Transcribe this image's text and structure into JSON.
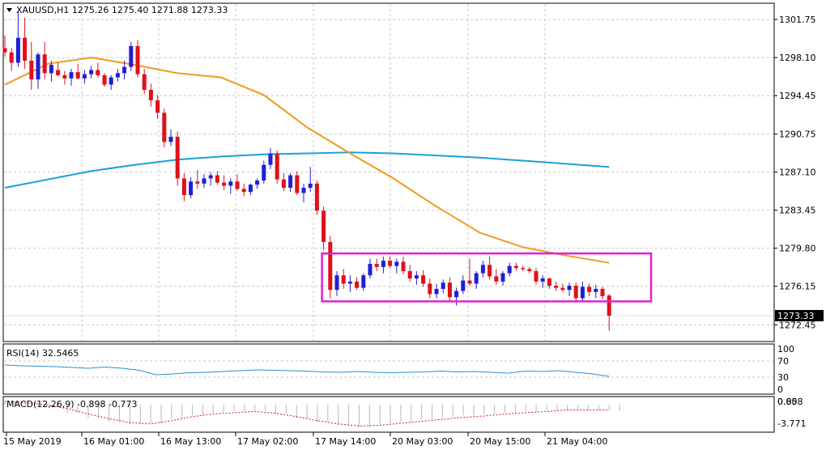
{
  "header": {
    "menu_icon": "triangle-down-icon",
    "text": "XAUUSD,H1  1275.26 1275.40 1271.88 1273.33"
  },
  "price_axis": {
    "ticks": [
      "1301.75",
      "1298.10",
      "1294.45",
      "1290.75",
      "1287.10",
      "1283.45",
      "1279.80",
      "1276.15",
      "1272.45"
    ],
    "current_price": "1273.33"
  },
  "time_axis": {
    "labels": [
      "15 May 2019",
      "16 May 01:00",
      "16 May 13:00",
      "17 May 02:00",
      "17 May 14:00",
      "20 May 03:00",
      "20 May 15:00",
      "21 May 04:00"
    ]
  },
  "rsi": {
    "label": "RSI(14) 32.5465",
    "ticks": [
      "100",
      "70",
      "30",
      "0"
    ]
  },
  "macd": {
    "label": "MACD(12,26,9) -0.898 -0.773",
    "ticks": [
      "0.858",
      "0.00",
      "-3.771"
    ]
  },
  "colors": {
    "bull": "#1f1fd6",
    "bear": "#e0101a",
    "ma_fast": "#f29a1e",
    "ma_slow": "#1aa0d8",
    "box": "#e01fd8",
    "rsi_line": "#2a8fd0",
    "macd_hist": "#b8b8b8",
    "macd_signal": "#d21a1a",
    "grid": "#c8c8c8"
  },
  "chart_data": {
    "type": "candlestick",
    "symbol": "XAUUSD",
    "timeframe": "H1",
    "ylim": [
      1271.0,
      1303.0
    ],
    "candles": [
      [
        1299.0,
        1300.2,
        1298.2,
        1298.6
      ],
      [
        1298.6,
        1299.0,
        1296.8,
        1297.6
      ],
      [
        1297.6,
        1302.5,
        1297.2,
        1300.0
      ],
      [
        1300.0,
        1301.9,
        1297.0,
        1297.8
      ],
      [
        1297.8,
        1299.6,
        1295.0,
        1296.0
      ],
      [
        1296.0,
        1298.6,
        1295.1,
        1298.4
      ],
      [
        1298.4,
        1299.6,
        1296.0,
        1296.6
      ],
      [
        1296.6,
        1297.8,
        1295.8,
        1297.4
      ],
      [
        1296.9,
        1297.6,
        1296.3,
        1296.4
      ],
      [
        1296.4,
        1296.8,
        1295.5,
        1296.1
      ],
      [
        1296.1,
        1297.0,
        1295.4,
        1296.7
      ],
      [
        1296.7,
        1297.5,
        1296.0,
        1296.1
      ],
      [
        1296.1,
        1296.9,
        1295.6,
        1296.5
      ],
      [
        1296.5,
        1297.3,
        1296.1,
        1296.9
      ],
      [
        1296.9,
        1297.6,
        1296.2,
        1296.4
      ],
      [
        1296.4,
        1296.6,
        1295.3,
        1295.5
      ],
      [
        1295.5,
        1296.4,
        1295.0,
        1296.2
      ],
      [
        1296.2,
        1297.0,
        1295.8,
        1296.6
      ],
      [
        1296.6,
        1297.8,
        1296.0,
        1297.2
      ],
      [
        1297.2,
        1299.6,
        1296.8,
        1299.2
      ],
      [
        1299.2,
        1299.8,
        1296.2,
        1296.5
      ],
      [
        1296.5,
        1297.0,
        1294.6,
        1295.0
      ],
      [
        1295.0,
        1295.6,
        1293.4,
        1294.0
      ],
      [
        1294.0,
        1294.5,
        1292.2,
        1292.8
      ],
      [
        1292.8,
        1293.2,
        1289.5,
        1290.0
      ],
      [
        1290.0,
        1291.2,
        1289.6,
        1290.5
      ],
      [
        1290.5,
        1291.0,
        1285.8,
        1286.5
      ],
      [
        1286.5,
        1287.0,
        1284.3,
        1284.9
      ],
      [
        1284.9,
        1286.6,
        1284.6,
        1286.2
      ],
      [
        1286.2,
        1287.3,
        1285.5,
        1286.0
      ],
      [
        1286.0,
        1286.9,
        1285.6,
        1286.5
      ],
      [
        1286.5,
        1287.1,
        1285.8,
        1286.8
      ],
      [
        1286.8,
        1287.2,
        1285.9,
        1286.1
      ],
      [
        1286.1,
        1286.8,
        1285.4,
        1285.8
      ],
      [
        1285.8,
        1286.5,
        1285.0,
        1286.2
      ],
      [
        1286.2,
        1286.9,
        1285.3,
        1285.5
      ],
      [
        1285.5,
        1286.0,
        1284.8,
        1285.2
      ],
      [
        1285.2,
        1286.0,
        1284.9,
        1285.9
      ],
      [
        1285.9,
        1286.5,
        1285.5,
        1286.3
      ],
      [
        1286.3,
        1288.2,
        1286.0,
        1287.8
      ],
      [
        1287.8,
        1289.4,
        1287.4,
        1288.9
      ],
      [
        1288.9,
        1289.2,
        1286.0,
        1286.4
      ],
      [
        1286.4,
        1287.0,
        1285.3,
        1285.6
      ],
      [
        1285.6,
        1287.0,
        1285.2,
        1286.8
      ],
      [
        1286.8,
        1287.2,
        1284.9,
        1285.1
      ],
      [
        1285.1,
        1286.0,
        1284.2,
        1285.6
      ],
      [
        1285.6,
        1287.6,
        1285.2,
        1286.0
      ],
      [
        1286.0,
        1286.3,
        1283.0,
        1283.4
      ],
      [
        1283.4,
        1283.8,
        1279.6,
        1280.4
      ],
      [
        1280.4,
        1281.0,
        1275.0,
        1275.8
      ],
      [
        1275.8,
        1277.6,
        1275.2,
        1277.2
      ],
      [
        1277.2,
        1277.8,
        1275.9,
        1276.4
      ],
      [
        1276.4,
        1277.2,
        1275.6,
        1276.6
      ],
      [
        1276.6,
        1277.0,
        1275.8,
        1276.0
      ],
      [
        1276.0,
        1277.4,
        1275.7,
        1277.2
      ],
      [
        1277.2,
        1278.8,
        1276.9,
        1278.3
      ],
      [
        1278.3,
        1278.8,
        1277.6,
        1278.0
      ],
      [
        1278.0,
        1279.0,
        1277.4,
        1278.6
      ],
      [
        1278.6,
        1279.0,
        1277.9,
        1278.1
      ],
      [
        1278.1,
        1278.8,
        1277.4,
        1278.5
      ],
      [
        1278.5,
        1279.0,
        1277.3,
        1277.6
      ],
      [
        1277.6,
        1278.2,
        1276.6,
        1276.9
      ],
      [
        1276.9,
        1277.6,
        1276.3,
        1277.2
      ],
      [
        1277.2,
        1277.7,
        1276.1,
        1276.4
      ],
      [
        1276.4,
        1276.9,
        1275.0,
        1275.4
      ],
      [
        1275.4,
        1276.4,
        1275.0,
        1275.9
      ],
      [
        1275.9,
        1276.8,
        1275.5,
        1276.5
      ],
      [
        1276.5,
        1277.0,
        1274.7,
        1275.1
      ],
      [
        1275.1,
        1276.0,
        1274.3,
        1275.7
      ],
      [
        1275.7,
        1277.2,
        1275.4,
        1276.7
      ],
      [
        1276.7,
        1278.8,
        1276.2,
        1276.4
      ],
      [
        1276.4,
        1277.6,
        1275.9,
        1277.4
      ],
      [
        1277.4,
        1278.6,
        1277.0,
        1278.2
      ],
      [
        1278.2,
        1279.0,
        1276.8,
        1277.1
      ],
      [
        1277.1,
        1277.8,
        1276.3,
        1276.6
      ],
      [
        1276.6,
        1277.6,
        1276.2,
        1277.4
      ],
      [
        1277.4,
        1278.4,
        1277.1,
        1278.1
      ],
      [
        1278.1,
        1278.4,
        1277.7,
        1277.9
      ],
      [
        1277.9,
        1278.1,
        1277.6,
        1277.8
      ],
      [
        1277.8,
        1278.0,
        1277.4,
        1277.6
      ],
      [
        1277.6,
        1277.9,
        1276.3,
        1276.6
      ],
      [
        1276.6,
        1277.2,
        1276.0,
        1276.9
      ],
      [
        1276.9,
        1277.0,
        1275.9,
        1276.2
      ],
      [
        1276.2,
        1276.6,
        1275.7,
        1276.0
      ],
      [
        1276.0,
        1276.4,
        1275.6,
        1275.8
      ],
      [
        1275.8,
        1276.5,
        1275.2,
        1276.2
      ],
      [
        1276.2,
        1276.5,
        1274.6,
        1275.0
      ],
      [
        1275.0,
        1276.6,
        1274.8,
        1276.1
      ],
      [
        1276.1,
        1276.4,
        1275.2,
        1275.6
      ],
      [
        1275.6,
        1276.3,
        1275.0,
        1275.9
      ],
      [
        1275.9,
        1276.1,
        1274.9,
        1275.2
      ],
      [
        1275.26,
        1275.4,
        1271.88,
        1273.33
      ]
    ],
    "ma_fast": [
      1295.5,
      1297.5,
      1298.1,
      1297.4,
      1296.6,
      1296.2,
      1294.5,
      1291.4,
      1288.9,
      1286.5,
      1283.8,
      1281.3,
      1279.9,
      1279.1,
      1278.4
    ],
    "ma_slow": [
      1285.6,
      1286.4,
      1287.2,
      1287.8,
      1288.3,
      1288.6,
      1288.8,
      1288.9,
      1289.0,
      1288.9,
      1288.7,
      1288.5,
      1288.2,
      1287.9,
      1287.6
    ],
    "range_box": {
      "top": 1279.3,
      "bottom": 1274.7
    },
    "rsi_values": [
      60,
      58,
      57,
      56,
      54,
      52,
      55,
      52,
      47,
      36,
      38,
      41,
      42,
      44,
      46,
      48,
      47,
      46,
      45,
      43,
      42,
      44,
      42,
      41,
      42,
      43,
      45,
      43,
      44,
      42,
      40,
      45,
      44,
      46,
      42,
      38,
      32
    ],
    "macd_signal": [
      0.5,
      0.3,
      0.0,
      -0.6,
      -1.4,
      -2.1,
      -2.7,
      -2.9,
      -2.4,
      -1.8,
      -1.4,
      -1.2,
      -1.0,
      -1.3,
      -1.8,
      -2.4,
      -2.9,
      -3.2,
      -3.1,
      -2.8,
      -2.5,
      -2.2,
      -1.9,
      -1.7,
      -1.4,
      -1.2,
      -1.0,
      -0.8,
      -0.8,
      -0.8
    ],
    "macd_hist": [
      0.4,
      0.2,
      -0.3,
      -1.2,
      -2.0,
      -2.6,
      -3.0,
      -2.8,
      -2.1,
      -1.6,
      -1.2,
      -1.0,
      -0.9,
      -1.4,
      -2.0,
      -2.6,
      -3.1,
      -3.4,
      -3.0,
      -2.6,
      -2.2,
      -1.9,
      -1.6,
      -1.4,
      -1.2,
      -1.0,
      -0.9,
      -0.8,
      -0.8,
      -0.9
    ],
    "rsi_range": [
      0,
      100
    ],
    "macd_range": [
      -3.771,
      0.858
    ]
  }
}
